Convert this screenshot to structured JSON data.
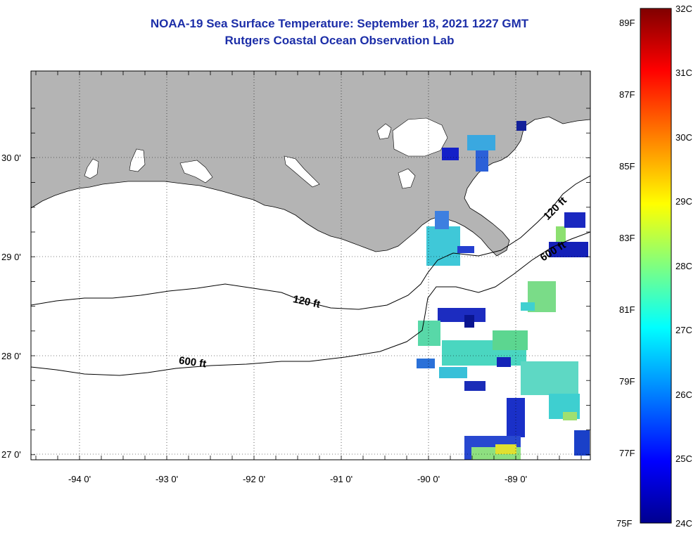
{
  "title": {
    "line1": "NOAA-19 Sea Surface Temperature:  September 18, 2021 1227 GMT",
    "line2": "Rutgers Coastal Ocean Observation Lab"
  },
  "map": {
    "lat_labels": [
      "30 0'",
      "29 0'",
      "28 0'",
      "27 0'"
    ],
    "lon_labels": [
      "-94 0'",
      "-93 0'",
      "-92 0'",
      "-91 0'",
      "-90 0'",
      "-89 0'"
    ],
    "contours": {
      "c120_west": "120 ft",
      "c600_west": "600 ft",
      "c120_east": "120 ft",
      "c600_east": "600 ft"
    },
    "land_color": "#b4b4b4"
  },
  "colorbar": {
    "fahrenheit": [
      "89F",
      "87F",
      "85F",
      "83F",
      "81F",
      "79F",
      "77F",
      "75F"
    ],
    "celsius": [
      "32C",
      "31C",
      "30C",
      "29C",
      "28C",
      "27C",
      "26C",
      "25C",
      "24C"
    ],
    "range_c": [
      24,
      32
    ],
    "colors": [
      "#00008f",
      "#0000ff",
      "#00ffff",
      "#ffff00",
      "#ff0000",
      "#800000"
    ]
  }
}
